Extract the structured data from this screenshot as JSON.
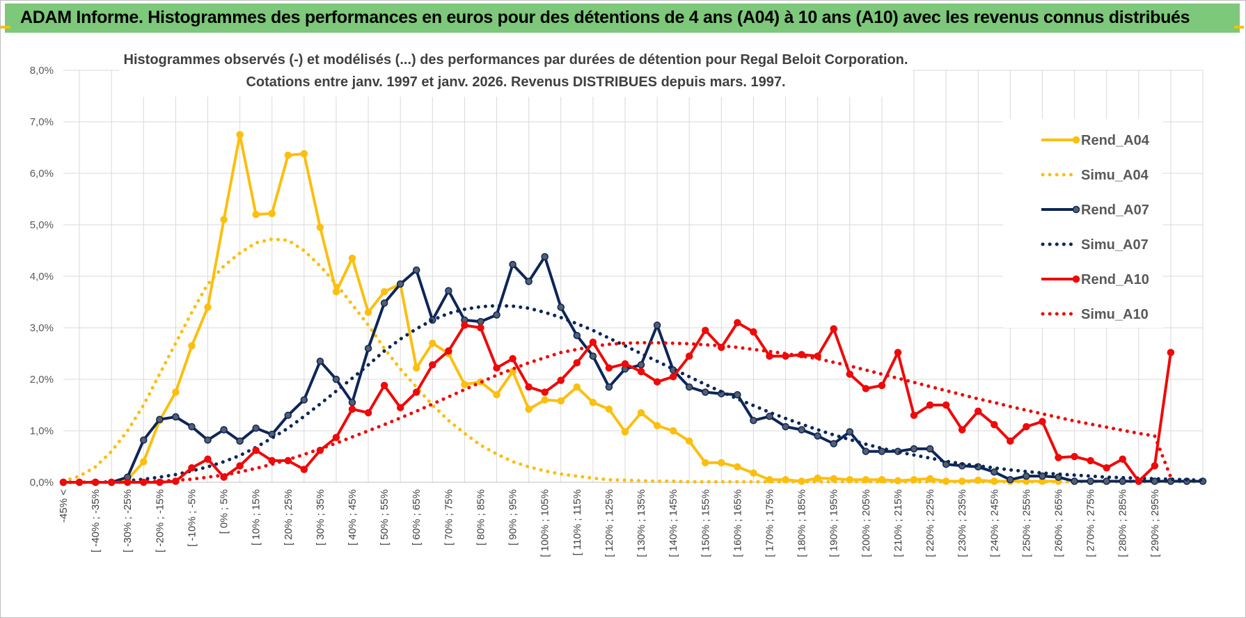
{
  "header": {
    "title": "ADAM Informe. Histogrammes des performances en euros pour des détentions de 4 ans (A04) à 10 ans (A10) avec les revenus connus distribués"
  },
  "colors": {
    "banner": "#7dc87a",
    "a04": "#fbbf10",
    "a07": "#0d2657",
    "a10": "#ee0a0a",
    "grid": "#d9d9d9"
  },
  "chart_data": {
    "type": "line",
    "title": "Histogrammes observés (-) et modélisés (...) des performances par durées de détention pour Regal Beloit Corporation.",
    "subtitle": "Cotations entre janv. 1997 et janv. 2026. Revenus DISTRIBUES depuis mars. 1997.",
    "xlabel": "",
    "ylabel": "",
    "ylim": [
      0,
      8
    ],
    "ytick_labels": [
      "0,0%",
      "1,0%",
      "2,0%",
      "3,0%",
      "4,0%",
      "5,0%",
      "6,0%",
      "7,0%",
      "8,0%"
    ],
    "grid": true,
    "legend_position": "right",
    "x_tick_labels": [
      "-45% <",
      "[ -40% ; -35%",
      "[ -30% ; -25%",
      "[ -20% ; -15%",
      "[ -10% ; -5%",
      "[ 0% ; 5%",
      "[ 10% ; 15%",
      "[ 20% ; 25%",
      "[ 30% ; 35%",
      "[ 40% ; 45%",
      "[ 50% ; 55%",
      "[ 60% ; 65%",
      "[ 70% ; 75%",
      "[ 80% ; 85%",
      "[ 90% ; 95%",
      "[ 100% ; 105%",
      "[ 110% ; 115%",
      "[ 120% ; 125%",
      "[ 130% ; 135%",
      "[ 140% ; 145%",
      "[ 150% ; 155%",
      "[ 160% ; 165%",
      "[ 170% ; 175%",
      "[ 180% ; 185%",
      "[ 190% ; 195%",
      "[ 200% ; 205%",
      "[ 210% ; 215%",
      "[ 220% ; 225%",
      "[ 230% ; 235%",
      "[ 240% ; 245%",
      "[ 250% ; 255%",
      "[ 260% ; 265%",
      "[ 270% ; 275%",
      "[ 280% ; 285%",
      "[ 290% ; 295%"
    ],
    "series": [
      {
        "name": "Rend_A04",
        "style": "solid",
        "color": "#fbbf10",
        "values": [
          0,
          0,
          0,
          0,
          0.05,
          0.4,
          1.2,
          1.75,
          2.65,
          3.4,
          5.1,
          6.75,
          5.2,
          5.22,
          6.35,
          6.38,
          4.95,
          3.7,
          4.35,
          3.3,
          3.7,
          3.85,
          2.22,
          2.7,
          2.5,
          1.9,
          1.95,
          1.7,
          2.15,
          1.42,
          1.6,
          1.58,
          1.85,
          1.55,
          1.42,
          0.98,
          1.35,
          1.1,
          1.0,
          0.8,
          0.38,
          0.38,
          0.3,
          0.18,
          0.05,
          0.05,
          0.02,
          0.08,
          0.07,
          0.05,
          0.05,
          0.05,
          0.03,
          0.05,
          0.07,
          0.02,
          0.02,
          0.04,
          0.02,
          0.02,
          0.02,
          0.02,
          0.02
        ]
      },
      {
        "name": "Simu_A04",
        "style": "dotted",
        "color": "#fbbf10",
        "values": [
          0.02,
          0.12,
          0.3,
          0.6,
          1.0,
          1.5,
          2.1,
          2.7,
          3.3,
          3.85,
          4.2,
          4.45,
          4.65,
          4.72,
          4.7,
          4.5,
          4.2,
          3.85,
          3.45,
          3.05,
          2.6,
          2.2,
          1.85,
          1.5,
          1.2,
          0.95,
          0.72,
          0.55,
          0.4,
          0.3,
          0.22,
          0.16,
          0.12,
          0.08,
          0.05,
          0.04,
          0.03,
          0.02,
          0.02,
          0.01,
          0.01,
          0.01,
          0.01,
          0.01,
          0.01,
          0.01,
          0.01,
          0.01,
          0.01,
          0.01,
          0.01,
          0.01,
          0.01,
          0.01,
          0.01,
          0.01,
          0.01,
          0.01,
          0.01,
          0.01,
          0.01,
          0.01,
          0.01,
          0.01,
          0.01,
          0.01,
          0.01,
          0.01,
          0.01,
          0.01,
          0.01,
          0.01
        ]
      },
      {
        "name": "Rend_A07",
        "style": "solid",
        "color": "#0d2657",
        "values": [
          0,
          0,
          0,
          0,
          0.1,
          0.82,
          1.22,
          1.27,
          1.08,
          0.82,
          1.02,
          0.8,
          1.05,
          0.93,
          1.3,
          1.6,
          2.35,
          2.0,
          1.55,
          2.6,
          3.48,
          3.85,
          4.12,
          3.15,
          3.72,
          3.15,
          3.12,
          3.25,
          4.23,
          3.9,
          4.38,
          3.4,
          2.85,
          2.45,
          1.85,
          2.2,
          2.28,
          3.05,
          2.18,
          1.85,
          1.75,
          1.72,
          1.7,
          1.2,
          1.28,
          1.08,
          1.02,
          0.9,
          0.75,
          0.98,
          0.6,
          0.6,
          0.6,
          0.65,
          0.65,
          0.35,
          0.32,
          0.3,
          0.2,
          0.05,
          0.12,
          0.12,
          0.1,
          0.02,
          0.02,
          0.02,
          0.02,
          0.02,
          0.02,
          0.02,
          0.02,
          0.02
        ]
      },
      {
        "name": "Simu_A07",
        "style": "dotted",
        "color": "#0d2657",
        "values": [
          0,
          0,
          0,
          0.01,
          0.03,
          0.06,
          0.1,
          0.15,
          0.22,
          0.3,
          0.4,
          0.52,
          0.68,
          0.86,
          1.05,
          1.28,
          1.52,
          1.77,
          2.02,
          2.28,
          2.55,
          2.78,
          2.98,
          3.15,
          3.28,
          3.36,
          3.41,
          3.43,
          3.42,
          3.38,
          3.3,
          3.2,
          3.08,
          2.95,
          2.8,
          2.65,
          2.5,
          2.35,
          2.2,
          2.05,
          1.9,
          1.76,
          1.62,
          1.49,
          1.36,
          1.24,
          1.13,
          1.02,
          0.92,
          0.83,
          0.74,
          0.66,
          0.59,
          0.53,
          0.47,
          0.41,
          0.36,
          0.32,
          0.28,
          0.24,
          0.21,
          0.18,
          0.16,
          0.14,
          0.12,
          0.1,
          0.09,
          0.08,
          0.07,
          0.06,
          0.05,
          0.04
        ]
      },
      {
        "name": "Rend_A10",
        "style": "solid",
        "color": "#ee0a0a",
        "values": [
          0,
          0,
          0,
          0,
          0,
          0,
          0,
          0.02,
          0.28,
          0.45,
          0.1,
          0.32,
          0.62,
          0.42,
          0.42,
          0.25,
          0.62,
          0.87,
          1.42,
          1.35,
          1.88,
          1.45,
          1.75,
          2.28,
          2.55,
          3.05,
          3.0,
          2.22,
          2.4,
          1.85,
          1.75,
          1.98,
          2.32,
          2.72,
          2.22,
          2.3,
          2.15,
          1.95,
          2.05,
          2.45,
          2.95,
          2.62,
          3.1,
          2.92,
          2.45,
          2.45,
          2.48,
          2.45,
          2.98,
          2.1,
          1.82,
          1.88,
          2.52,
          1.3,
          1.5,
          1.5,
          1.02,
          1.38,
          1.12,
          0.8,
          1.08,
          1.18,
          0.48,
          0.5,
          0.42,
          0.28,
          0.45,
          0.02,
          0.32,
          2.52
        ]
      },
      {
        "name": "Simu_A10",
        "style": "dotted",
        "color": "#ee0a0a",
        "values": [
          0,
          0,
          0,
          0,
          0,
          0.01,
          0.02,
          0.04,
          0.06,
          0.1,
          0.14,
          0.2,
          0.27,
          0.35,
          0.44,
          0.54,
          0.65,
          0.76,
          0.88,
          1.0,
          1.12,
          1.25,
          1.38,
          1.52,
          1.66,
          1.8,
          1.94,
          2.08,
          2.2,
          2.32,
          2.42,
          2.52,
          2.58,
          2.64,
          2.68,
          2.7,
          2.71,
          2.71,
          2.7,
          2.69,
          2.67,
          2.65,
          2.62,
          2.58,
          2.54,
          2.5,
          2.45,
          2.4,
          2.33,
          2.26,
          2.18,
          2.1,
          2.02,
          1.94,
          1.86,
          1.78,
          1.7,
          1.62,
          1.55,
          1.47,
          1.4,
          1.33,
          1.26,
          1.19,
          1.13,
          1.07,
          1.01,
          0.95,
          0.9,
          0.1
        ]
      }
    ]
  }
}
